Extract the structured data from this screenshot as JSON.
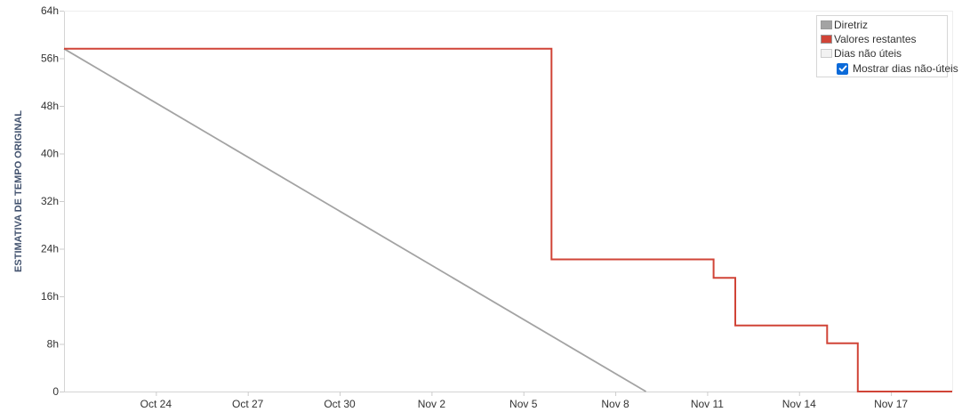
{
  "chart_data": {
    "type": "line",
    "ylabel": "ESTIMATIVA DE TEMPO ORIGINAL",
    "y_unit_suffix": "h",
    "ylim": [
      0,
      64
    ],
    "y_ticks": [
      0,
      8,
      16,
      24,
      32,
      40,
      48,
      56,
      64
    ],
    "y_tick_labels": [
      "0",
      "8h",
      "16h",
      "24h",
      "32h",
      "40h",
      "48h",
      "56h",
      "64h"
    ],
    "xlim": [
      "Oct 21",
      "Nov 19"
    ],
    "x_ticks": [
      "Oct 24",
      "Oct 27",
      "Oct 30",
      "Nov 2",
      "Nov 5",
      "Nov 8",
      "Nov 11",
      "Nov 14",
      "Nov 17"
    ],
    "grid": false,
    "legend_position": "top-right",
    "series": [
      {
        "name": "Diretriz",
        "color": "#a3a3a3",
        "line": "straight",
        "points": [
          {
            "x": "Oct 21",
            "y": 57.6
          },
          {
            "x": "Nov 9",
            "y": 0
          }
        ]
      },
      {
        "name": "Valores restantes",
        "color": "#d04437",
        "line": "step",
        "points": [
          {
            "x": "Oct 21",
            "y": 57.6
          },
          {
            "x": "Nov 5 22:00",
            "y": 57.6
          },
          {
            "x": "Nov 5 22:00",
            "y": 22.2
          },
          {
            "x": "Nov 11 05:00",
            "y": 22.2
          },
          {
            "x": "Nov 11 05:00",
            "y": 19.1
          },
          {
            "x": "Nov 11 22:00",
            "y": 19.1
          },
          {
            "x": "Nov 11 22:00",
            "y": 11.1
          },
          {
            "x": "Nov 14 22:00",
            "y": 11.1
          },
          {
            "x": "Nov 14 22:00",
            "y": 8.1
          },
          {
            "x": "Nov 15 22:00",
            "y": 8.1
          },
          {
            "x": "Nov 15 22:00",
            "y": 0
          },
          {
            "x": "Nov 19",
            "y": 0
          }
        ]
      }
    ]
  },
  "legend": {
    "items": [
      {
        "label": "Diretriz",
        "color": "#a3a3a3"
      },
      {
        "label": "Valores restantes",
        "color": "#d04437"
      },
      {
        "label": "Dias não úteis",
        "color": "#f2f2f2"
      }
    ],
    "checkbox_label": "Mostrar dias não-úteis",
    "checkbox_checked": true,
    "checkbox_color": "#0b6ad9"
  }
}
